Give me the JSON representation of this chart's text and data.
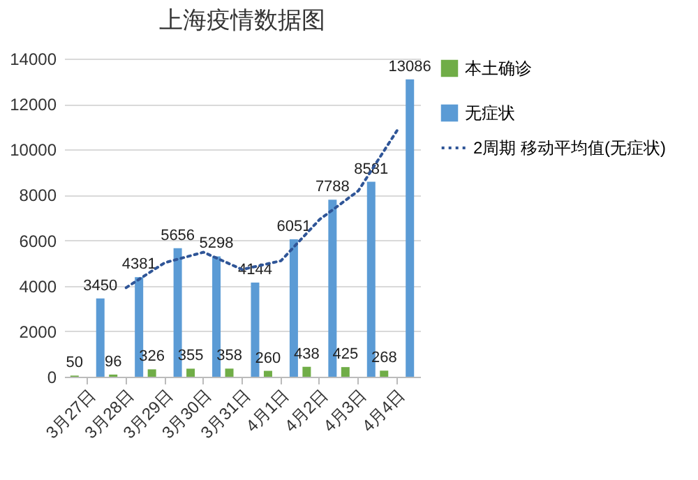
{
  "chart_data": {
    "type": "bar",
    "title": "上海疫情数据图",
    "categories": [
      "3月27日",
      "3月28日",
      "3月29日",
      "3月30日",
      "3月31日",
      "4月1日",
      "4月2日",
      "4月3日",
      "4月4日"
    ],
    "series": [
      {
        "name": "本土确诊",
        "color": "#70ad47",
        "values": [
          50,
          96,
          326,
          355,
          358,
          260,
          438,
          425,
          268
        ],
        "value_labels": [
          "50",
          "96",
          "326",
          "355",
          "358",
          "260",
          "438",
          "425",
          "268"
        ]
      },
      {
        "name": "无症状",
        "color": "#5b9bd5",
        "values": [
          3450,
          4381,
          5656,
          5298,
          4144,
          6051,
          7788,
          8581,
          13086
        ],
        "value_labels": [
          "3450",
          "4381",
          "5656",
          "5298",
          "4144",
          "6051",
          "7788",
          "8581",
          "13086"
        ]
      },
      {
        "name": "2周期 移动平均值(无症状)",
        "type": "line",
        "color": "#2f5597",
        "line_style": "dotted",
        "values": [
          null,
          3920,
          5020,
          5480,
          4720,
          5100,
          6920,
          8180,
          10830
        ]
      }
    ],
    "ylim": [
      0,
      14000
    ],
    "yticks": [
      0,
      2000,
      4000,
      6000,
      8000,
      10000,
      12000,
      14000
    ],
    "grid": "y",
    "legend": "right"
  }
}
